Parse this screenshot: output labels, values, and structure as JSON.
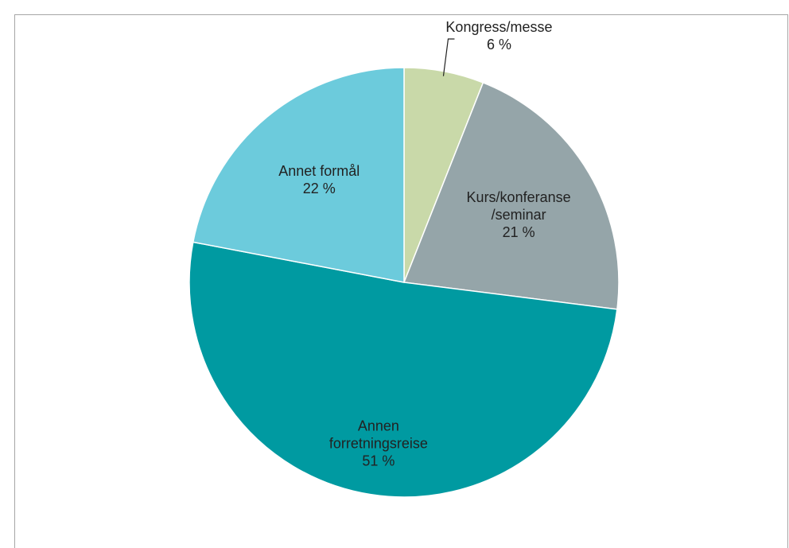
{
  "chart_data": {
    "type": "pie",
    "categories": [
      "Kongress/messe",
      "Kurs/konferanse\n/seminar",
      "Annen\nforretningsreise",
      "Annet formål"
    ],
    "values": [
      6,
      21,
      51,
      22
    ],
    "value_labels": [
      "6 %",
      "21 %",
      "51 %",
      "22 %"
    ],
    "colors": [
      "#c9d9a9",
      "#95a5a9",
      "#009aa1",
      "#6ccbdc"
    ]
  }
}
